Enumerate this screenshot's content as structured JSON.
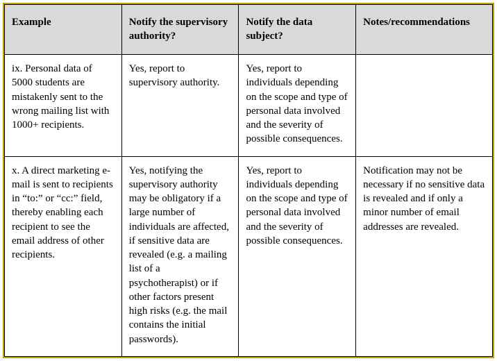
{
  "table": {
    "border_color": "#bfa000",
    "cell_border_color": "#000000",
    "header_bg": "#d9d9d9",
    "body_bg": "#ffffff",
    "font_family": "Times New Roman",
    "header_fontsize": 15,
    "body_fontsize": 15,
    "columns": [
      {
        "key": "example",
        "label": "Example",
        "width_pct": 24
      },
      {
        "key": "supervisory",
        "label": "Notify the supervisory authority?",
        "width_pct": 24
      },
      {
        "key": "subject",
        "label": "Notify the data subject?",
        "width_pct": 24
      },
      {
        "key": "notes",
        "label": "Notes/recommendations",
        "width_pct": 28
      }
    ],
    "rows": [
      {
        "example": "ix. Personal data of 5000 students are mistakenly sent to the wrong mailing list with 1000+ recipients.",
        "supervisory": "Yes, report to supervisory authority.",
        "subject": "Yes, report to individuals depending on the scope and type of personal data involved and the severity of possible consequences.",
        "notes": ""
      },
      {
        "example": "x. A direct marketing e-mail is sent to recipients in “to:” or “cc:” field, thereby enabling each recipient to see the email address of other recipients.",
        "supervisory": "Yes, notifying the supervisory authority may be obligatory if a large number of individuals are affected, if sensitive data are revealed (e.g. a mailing list of a psychotherapist) or if other factors present high risks (e.g. the mail contains the initial passwords).",
        "subject": "Yes, report to individuals depending on the scope and type of personal data involved and the severity of possible consequences.",
        "notes": "Notification may not be necessary if no sensitive data is revealed and if only a minor number of email addresses are revealed."
      }
    ]
  }
}
